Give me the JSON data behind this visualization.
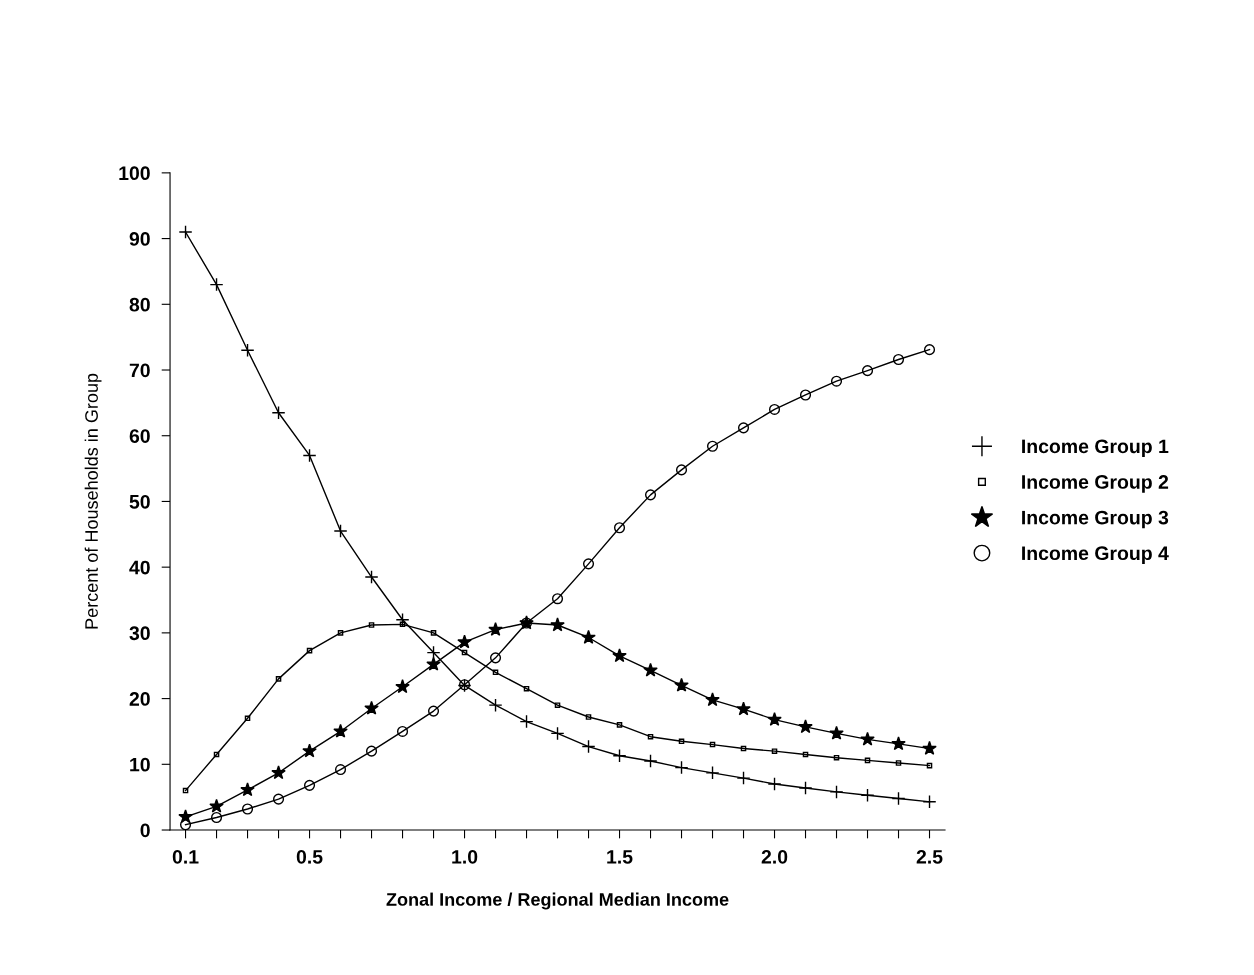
{
  "chart_data": {
    "type": "line",
    "xlabel": "Zonal Income / Regional Median Income",
    "ylabel": "Percent of Households in Group",
    "x": [
      0.1,
      0.2,
      0.3,
      0.4,
      0.5,
      0.6,
      0.7,
      0.8,
      0.9,
      1.0,
      1.1,
      1.2,
      1.3,
      1.4,
      1.5,
      1.6,
      1.7,
      1.8,
      1.9,
      2.0,
      2.1,
      2.2,
      2.3,
      2.4,
      2.5
    ],
    "series": [
      {
        "name": "Income Group 1",
        "color": "#000000",
        "marker": "cross",
        "values": [
          91,
          83,
          73,
          63.5,
          57,
          45.5,
          38.5,
          32,
          27,
          22,
          19,
          16.5,
          14.7,
          12.7,
          11.3,
          10.5,
          9.5,
          8.7,
          7.9,
          7,
          6.4,
          5.8,
          5.3,
          4.8,
          4.3
        ]
      },
      {
        "name": "Income Group 2",
        "color": "#000000",
        "marker": "square",
        "values": [
          6,
          11.5,
          17,
          23,
          27.3,
          30,
          31.2,
          31.3,
          30,
          27,
          24,
          21.5,
          19,
          17.2,
          16,
          14.2,
          13.5,
          13,
          12.4,
          12,
          11.5,
          11,
          10.6,
          10.2,
          9.8
        ]
      },
      {
        "name": "Income Group 3",
        "color": "#000000",
        "marker": "star",
        "values": [
          2,
          3.6,
          6.1,
          8.7,
          12,
          15,
          18.5,
          21.8,
          25.2,
          28.6,
          30.5,
          31.5,
          31.2,
          29.3,
          26.5,
          24.3,
          22,
          19.8,
          18.4,
          16.8,
          15.7,
          14.7,
          13.8,
          13.1,
          12.4
        ]
      },
      {
        "name": "Income Group 4",
        "color": "#000000",
        "marker": "circle",
        "values": [
          0.8,
          1.9,
          3.2,
          4.7,
          6.8,
          9.2,
          12,
          15,
          18.1,
          22.1,
          26.2,
          31.5,
          35.2,
          40.5,
          46,
          51,
          54.8,
          58.4,
          61.2,
          64,
          66.2,
          68.3,
          69.9,
          71.6,
          73.1
        ]
      }
    ],
    "xlim": [
      0.05,
      2.55
    ],
    "ylim": [
      0,
      100
    ],
    "xticks": [
      0.1,
      {
        "value": 0.2,
        "label": null
      },
      {
        "value": 0.3,
        "label": null
      },
      {
        "value": 0.4,
        "label": null
      },
      0.5,
      {
        "value": 0.6,
        "label": null
      },
      {
        "value": 0.7,
        "label": null
      },
      {
        "value": 0.8,
        "label": null
      },
      {
        "value": 0.9,
        "label": null
      },
      {
        "value": 1.0,
        "label": "1.0"
      },
      {
        "value": 1.1,
        "label": null
      },
      {
        "value": 1.2,
        "label": null
      },
      {
        "value": 1.3,
        "label": null
      },
      {
        "value": 1.4,
        "label": null
      },
      1.5,
      {
        "value": 1.6,
        "label": null
      },
      {
        "value": 1.7,
        "label": null
      },
      {
        "value": 1.8,
        "label": null
      },
      {
        "value": 1.9,
        "label": null
      },
      {
        "value": 2.0,
        "label": "2.0"
      },
      {
        "value": 2.1,
        "label": null
      },
      {
        "value": 2.2,
        "label": null
      },
      {
        "value": 2.3,
        "label": null
      },
      {
        "value": 2.4,
        "label": null
      },
      2.5
    ],
    "yticks": [
      0,
      10,
      20,
      30,
      40,
      50,
      60,
      70,
      80,
      90,
      100
    ],
    "grid": false,
    "legend": "right",
    "line_style": "solid"
  }
}
